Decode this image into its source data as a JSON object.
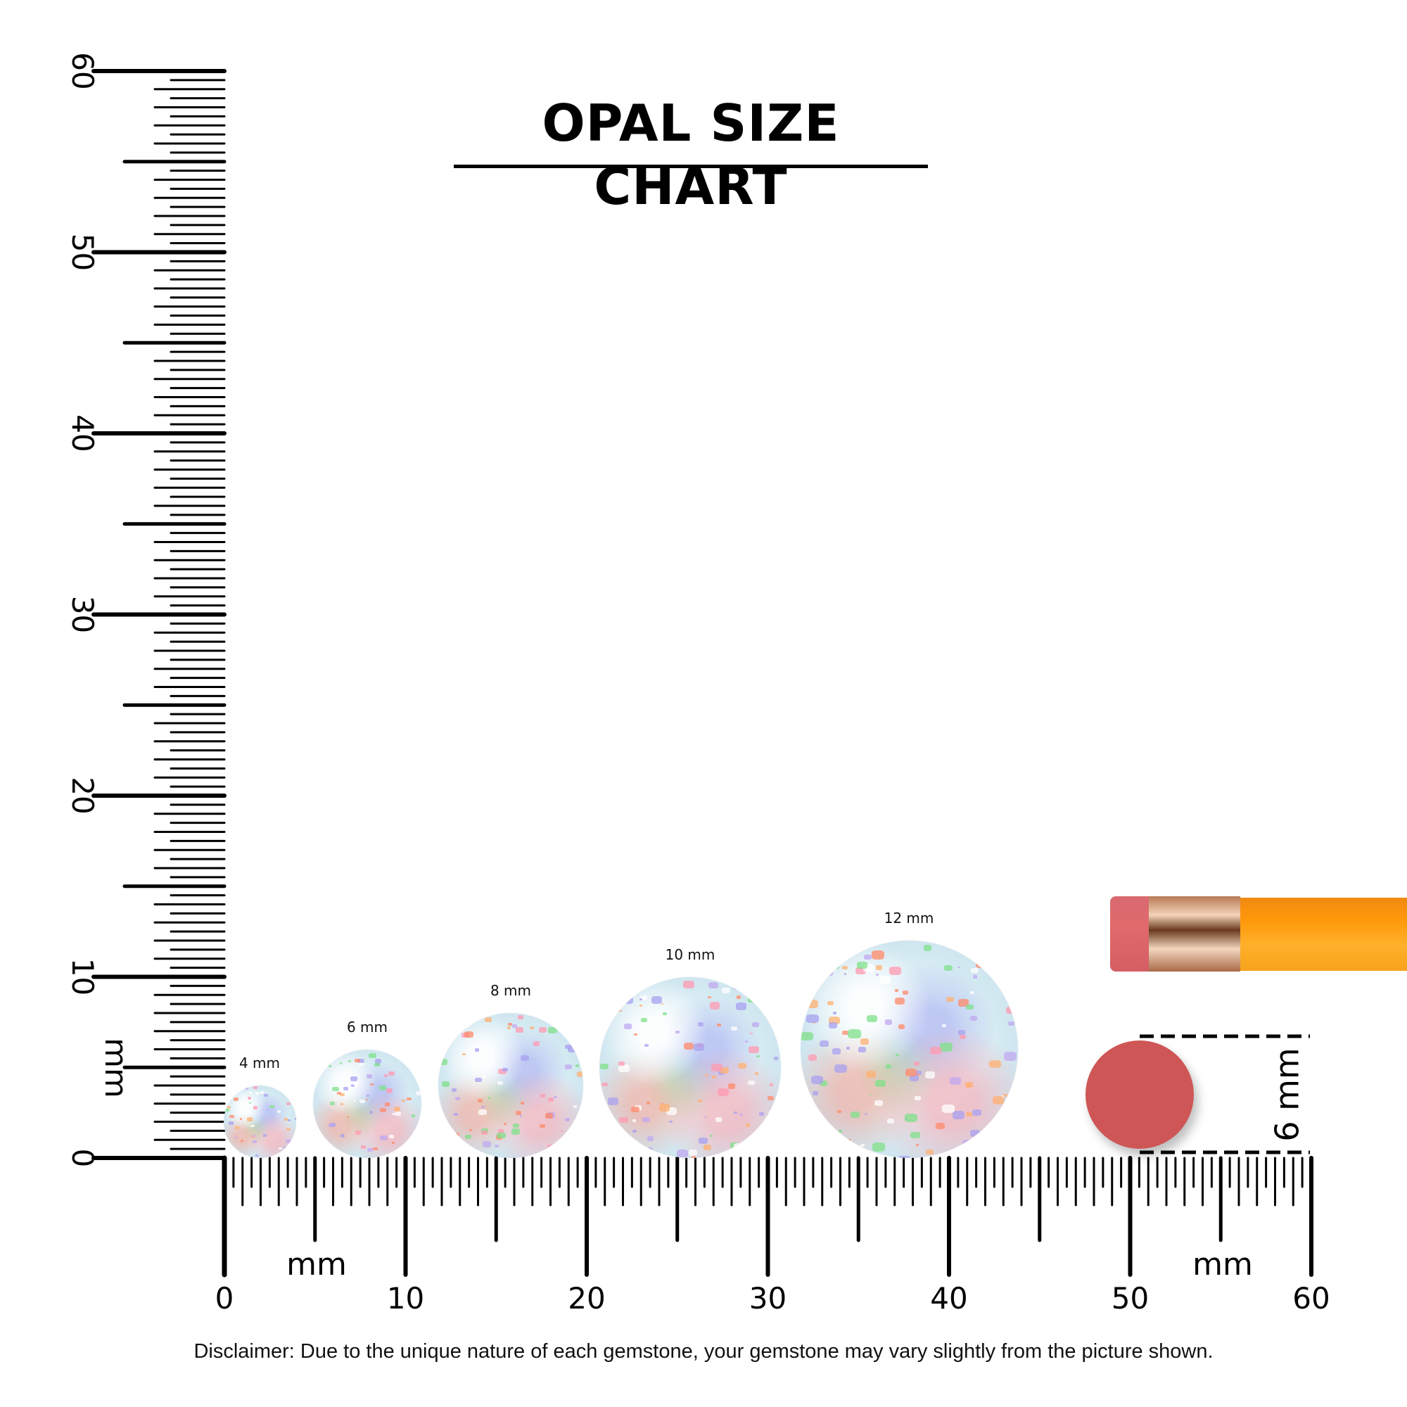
{
  "title": "OPAL SIZE CHART",
  "unit_label": "mm",
  "ruler": {
    "min": 0,
    "max": 60,
    "x_tick_labels": [
      "0",
      "10",
      "20",
      "30",
      "40",
      "50",
      "60"
    ],
    "y_tick_labels": [
      "0",
      "10",
      "20",
      "30",
      "40",
      "50",
      "60"
    ]
  },
  "opals": [
    {
      "label": "4 mm",
      "size_mm": 4
    },
    {
      "label": "6 mm",
      "size_mm": 6
    },
    {
      "label": "8 mm",
      "size_mm": 8
    },
    {
      "label": "10 mm",
      "size_mm": 10
    },
    {
      "label": "12 mm",
      "size_mm": 12
    }
  ],
  "pencil_eraser": {
    "label": "6 mm",
    "size_mm": 6,
    "color": "#cf5656"
  },
  "pencil_color": "#ff980a",
  "disclaimer": "Disclaimer: Due to the unique nature of each gemstone, your gemstone may vary slightly from the picture shown."
}
